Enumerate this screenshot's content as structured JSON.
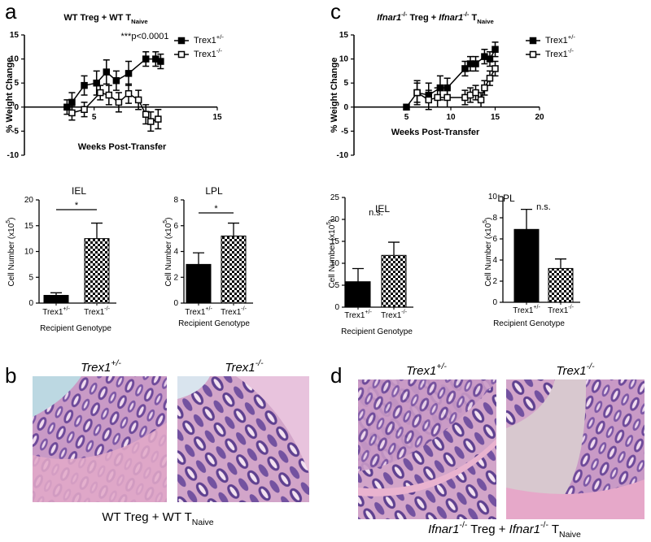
{
  "panel_labels": [
    "a",
    "b",
    "c",
    "d"
  ],
  "chart_data": [
    {
      "type": "line",
      "title": "WT Treg + WT TNaive",
      "annotation": "***p<0.0001",
      "xlabel": "Weeks Post-Transfer",
      "ylabel": "% Weight Change",
      "xlim": [
        0,
        15
      ],
      "ylim": [
        -10,
        15
      ],
      "xticks": [
        5,
        15
      ],
      "yticks": [
        -10,
        -5,
        0,
        5,
        10,
        15
      ],
      "legend": "upper right",
      "series": [
        {
          "name": "Trex1+/-",
          "marker": "filled",
          "x": [
            2.8,
            3.2,
            4.2,
            5.2,
            6.0,
            6.8,
            7.8,
            9.2,
            10.0,
            10.4
          ],
          "values": [
            0,
            1,
            4.5,
            5,
            7.3,
            5.5,
            7,
            10,
            10,
            9.5
          ],
          "errors": [
            1.5,
            2,
            2,
            2.5,
            2.5,
            2,
            2.5,
            1.5,
            1.5,
            1.5
          ]
        },
        {
          "name": "Trex1-/-",
          "marker": "open",
          "x": [
            3.2,
            4.2,
            5.5,
            6.2,
            7.0,
            7.8,
            8.6,
            9.2,
            9.6,
            10.2
          ],
          "values": [
            -1.2,
            -0.5,
            3,
            2.5,
            1,
            2.8,
            1.5,
            -1.5,
            -3,
            -2.5
          ],
          "errors": [
            1.5,
            1.5,
            1.5,
            2,
            2,
            2,
            2,
            2,
            2,
            2
          ]
        }
      ]
    },
    {
      "type": "bar",
      "title": "IEL",
      "ylabel": "Cell Number (x105)",
      "xlabel": "Recipient Genotype",
      "categories": [
        "Trex1+/-",
        "Trex1-/-"
      ],
      "values": [
        1.5,
        12.5
      ],
      "errors": [
        0.5,
        3
      ],
      "fills": [
        "solid",
        "checkered"
      ],
      "annotation": "*",
      "ylim": [
        0,
        20
      ],
      "yticks": [
        0,
        5,
        10,
        15,
        20
      ]
    },
    {
      "type": "bar",
      "title": "LPL",
      "ylabel": "Cell Number (x105)",
      "xlabel": "Recipient Genotype",
      "categories": [
        "Trex1+/-",
        "Trex1-/-"
      ],
      "values": [
        3.0,
        5.2
      ],
      "errors": [
        0.9,
        1.0
      ],
      "fills": [
        "solid",
        "checkered"
      ],
      "annotation": "*",
      "ylim": [
        0,
        8
      ],
      "yticks": [
        0,
        2,
        4,
        6,
        8
      ]
    },
    {
      "type": "line",
      "title": "Ifnar1-/- Treg + Ifnar1-/- TNaive",
      "xlabel": "Weeks Post-Transfer",
      "ylabel": "% Weight Change",
      "xlim": [
        0,
        20
      ],
      "ylim": [
        -10,
        15
      ],
      "xticks": [
        5,
        10,
        15,
        20
      ],
      "yticks": [
        -10,
        -5,
        0,
        5,
        10,
        15
      ],
      "legend": "upper right",
      "series": [
        {
          "name": "Trex1+/-",
          "marker": "filled",
          "x": [
            5,
            6.2,
            7.5,
            8.8,
            9.6,
            11.6,
            12.2,
            12.8,
            13.8,
            14.4,
            15
          ],
          "values": [
            0,
            3,
            2.5,
            4,
            4,
            8,
            9,
            9,
            10.5,
            10,
            12
          ],
          "errors": [
            0.5,
            2.5,
            2.5,
            2.5,
            2,
            1.5,
            1.5,
            1.5,
            1.5,
            1.5,
            1.5
          ]
        },
        {
          "name": "Trex1-/-",
          "marker": "open",
          "x": [
            6.2,
            7.5,
            8.5,
            9.6,
            11.6,
            12.2,
            12.8,
            13.4,
            13.8,
            14.4,
            15
          ],
          "values": [
            3,
            1.5,
            2,
            2,
            2,
            2.5,
            3,
            1.5,
            4,
            6,
            8
          ],
          "errors": [
            2,
            2,
            2,
            2,
            1.5,
            1.5,
            1.5,
            1.5,
            1.5,
            1.5,
            1.5
          ]
        }
      ]
    },
    {
      "type": "bar",
      "title": "IEL",
      "ylabel": "Cell Number (x105)",
      "xlabel": "Recipient Genotype",
      "categories": [
        "Trex1+/-",
        "Trex1-/-"
      ],
      "values": [
        5.8,
        11.8
      ],
      "errors": [
        3,
        3
      ],
      "fills": [
        "solid",
        "checkered"
      ],
      "annotation": "n.s.",
      "ylim": [
        0,
        25
      ],
      "yticks": [
        0,
        5,
        10,
        15,
        20,
        25
      ]
    },
    {
      "type": "bar",
      "title": "LPL",
      "ylabel": "Cell Number (x105)",
      "xlabel": "Recipient Genotype",
      "categories": [
        "Trex1+/-",
        "Trex1-/-"
      ],
      "values": [
        6.9,
        3.2
      ],
      "errors": [
        1.9,
        0.9
      ],
      "fills": [
        "solid",
        "checkered"
      ],
      "annotation": "n.s.",
      "ylim": [
        0,
        10
      ],
      "yticks": [
        0,
        2,
        4,
        6,
        8,
        10
      ]
    }
  ],
  "histology": [
    {
      "headers": [
        "Trex1+/-",
        "Trex1-/-"
      ],
      "caption": "WT Treg + WT TNaive"
    },
    {
      "headers": [
        "Trex1+/-",
        "Trex1-/-"
      ],
      "caption": "Ifnar1-/- Treg + Ifnar1-/- TNaive"
    }
  ]
}
